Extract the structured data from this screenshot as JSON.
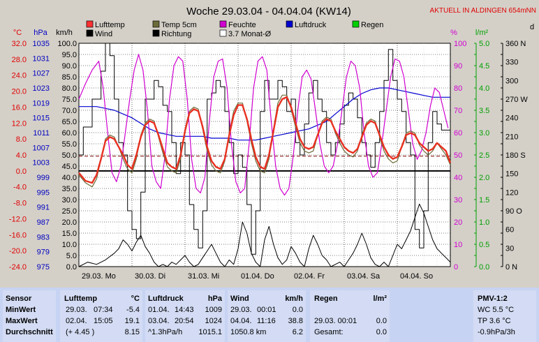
{
  "chart_data": {
    "type": "line",
    "title": "Woche 29.03.04 - 04.04.04 (KW14)",
    "station_note": "AKTUELL IN ALDINGEN 654mNN",
    "legend": [
      {
        "name": "Lufttemp",
        "color": "#ff3030"
      },
      {
        "name": "Wind",
        "color": "#000000"
      },
      {
        "name": "Temp 5cm",
        "color": "#6b6b3a"
      },
      {
        "name": "Richtung",
        "color": "#000000"
      },
      {
        "name": "Feuchte",
        "color": "#d000d0"
      },
      {
        "name": "3.7 Monat-Ø",
        "color": "#ffffff"
      },
      {
        "name": "Luftdruck",
        "color": "#0000d0"
      },
      {
        "name": "Regen",
        "color": "#00d000"
      }
    ],
    "axis_units": {
      "temp": "°C",
      "pressure": "hPa",
      "wind": "km/h",
      "humidity": "%",
      "rain": "l/m²",
      "direction": "d"
    },
    "temp_ticks": [
      "32.0",
      "28.0",
      "24.0",
      "20.0",
      "16.0",
      "12.0",
      "8.0",
      "4.0",
      "0.0",
      "-4.0",
      "-8.0",
      "-12.0",
      "-16.0",
      "-20.0",
      "-24.0"
    ],
    "pressure_ticks": [
      "1035",
      "1031",
      "1027",
      "1023",
      "1019",
      "1015",
      "1011",
      "1007",
      "1003",
      "999",
      "995",
      "991",
      "987",
      "983",
      "979",
      "975"
    ],
    "wind_ticks": [
      "100.0",
      "95.0",
      "90.0",
      "85.0",
      "80.0",
      "75.0",
      "70.0",
      "65.0",
      "60.0",
      "55.0",
      "50.0",
      "45.0",
      "40.0",
      "35.0",
      "30.0",
      "25.0",
      "20.0",
      "15.0",
      "10.0",
      "5.0",
      "0.0"
    ],
    "humidity_ticks": [
      "100",
      "90",
      "80",
      "70",
      "60",
      "50",
      "40",
      "30",
      "20",
      "10",
      "0"
    ],
    "rain_ticks": [
      "5.0",
      "4.5",
      "4.0",
      "3.5",
      "3.0",
      "2.5",
      "2.0",
      "1.5",
      "1.0",
      "0.5",
      "0.0"
    ],
    "direction_ticks": [
      "360 N",
      "330",
      "300",
      "270 W",
      "240",
      "210",
      "180 S",
      "150",
      "120",
      "90 O",
      "60",
      "30",
      "0 N"
    ],
    "day_labels": [
      "29.03. Mo",
      "30.03. Di",
      "31.03. Mi",
      "01.04. Do",
      "02.04. Fr",
      "03.04. Sa",
      "04.04. So"
    ],
    "ylim_temp": [
      -24,
      32
    ],
    "ylim_pressure": [
      975,
      1035
    ],
    "ylim_wind": [
      0,
      100
    ],
    "ylim_humidity": [
      0,
      100
    ],
    "ylim_rain": [
      0,
      5
    ],
    "ylim_direction": [
      0,
      360
    ],
    "xlim_hours": [
      0,
      168
    ],
    "grid": true,
    "temp_zero_line": 0,
    "monthly_mean_temp": 3.7,
    "series": [
      {
        "name": "Lufttemp",
        "color": "#e83020",
        "axis": "temp",
        "x": [
          0,
          3,
          6,
          8,
          10,
          12,
          14,
          16,
          18,
          20,
          22,
          24,
          26,
          28,
          30,
          32,
          34,
          36,
          38,
          40,
          42,
          44,
          46,
          48,
          50,
          52,
          54,
          56,
          58,
          60,
          62,
          64,
          66,
          68,
          70,
          72,
          74,
          76,
          78,
          80,
          82,
          84,
          86,
          88,
          90,
          92,
          94,
          96,
          98,
          100,
          102,
          104,
          106,
          108,
          110,
          112,
          114,
          116,
          118,
          120,
          122,
          124,
          126,
          128,
          130,
          132,
          134,
          136,
          138,
          140,
          142,
          144,
          146,
          148,
          150,
          152,
          154,
          156,
          158,
          160,
          162,
          164,
          166,
          168
        ],
        "y": [
          -0.5,
          -2.5,
          -3,
          -1,
          3,
          7.5,
          8.5,
          8,
          6,
          4,
          1.5,
          0.5,
          4,
          8.5,
          11.5,
          12.5,
          12,
          9,
          5.5,
          2,
          1,
          0.5,
          4,
          10,
          14.5,
          15.5,
          15,
          11,
          6,
          2.5,
          1,
          0.5,
          3,
          9,
          14,
          16.5,
          16.5,
          13,
          8,
          3.5,
          1,
          0.5,
          4,
          10,
          16,
          18,
          18.5,
          16,
          12,
          8,
          6,
          5.5,
          6,
          9,
          12,
          13,
          12.5,
          10,
          8,
          6,
          5,
          4.5,
          5.5,
          8.5,
          11.5,
          12.5,
          12,
          9,
          6,
          4,
          3,
          3.5,
          6,
          9,
          9.5,
          9,
          7,
          6,
          5,
          5.5,
          7,
          6,
          5,
          2
        ]
      },
      {
        "name": "Temp 5cm",
        "color": "#6b6b3a",
        "axis": "temp",
        "x": [
          0,
          3,
          6,
          8,
          10,
          12,
          14,
          16,
          18,
          20,
          22,
          24,
          26,
          28,
          30,
          32,
          34,
          36,
          38,
          40,
          42,
          44,
          46,
          48,
          50,
          52,
          54,
          56,
          58,
          60,
          62,
          64,
          66,
          68,
          70,
          72,
          74,
          76,
          78,
          80,
          82,
          84,
          86,
          88,
          90,
          92,
          94,
          96,
          98,
          100,
          102,
          104,
          106,
          108,
          110,
          112,
          114,
          116,
          118,
          120,
          122,
          124,
          126,
          128,
          130,
          132,
          134,
          136,
          138,
          140,
          142,
          144,
          146,
          148,
          150,
          152,
          154,
          156,
          158,
          160,
          162,
          164,
          166,
          168
        ],
        "y": [
          -1,
          -3,
          -4,
          -2,
          3,
          8,
          9,
          8.5,
          6,
          3,
          0.5,
          -0.5,
          3,
          9,
          12,
          13,
          12.5,
          8.5,
          4.5,
          1,
          0,
          -0.5,
          3,
          10.5,
          15,
          16,
          15.5,
          10.5,
          5,
          1.5,
          0,
          -0.5,
          2.5,
          9.5,
          15,
          17,
          17,
          12.5,
          7,
          2.5,
          0,
          -0.5,
          3,
          10.5,
          17,
          19,
          19,
          15.5,
          11,
          7,
          5,
          4.5,
          5,
          9,
          12.5,
          13.5,
          13,
          9.5,
          7,
          5,
          4,
          3.5,
          5,
          9,
          12,
          13,
          12.5,
          8.5,
          5,
          3,
          2,
          2.5,
          6,
          9.5,
          10,
          9.5,
          6.5,
          5,
          4,
          5,
          7,
          5.5,
          4,
          1.5
        ]
      },
      {
        "name": "Feuchte",
        "color": "#d000d0",
        "axis": "humidity",
        "x": [
          0,
          3,
          6,
          9,
          11,
          13,
          15,
          17,
          19,
          21,
          23,
          25,
          27,
          29,
          31,
          33,
          35,
          37,
          39,
          41,
          43,
          45,
          47,
          49,
          51,
          53,
          55,
          57,
          59,
          61,
          63,
          65,
          67,
          69,
          71,
          73,
          75,
          77,
          79,
          81,
          83,
          85,
          87,
          89,
          91,
          93,
          95,
          97,
          99,
          101,
          103,
          105,
          107,
          109,
          111,
          113,
          115,
          117,
          119,
          121,
          123,
          125,
          127,
          129,
          131,
          133,
          135,
          137,
          139,
          141,
          143,
          145,
          147,
          149,
          151,
          153,
          155,
          157,
          159,
          161,
          163,
          165,
          167
        ],
        "y": [
          75,
          82,
          88,
          92,
          80,
          60,
          42,
          38,
          45,
          60,
          75,
          88,
          95,
          88,
          70,
          45,
          38,
          35,
          50,
          75,
          90,
          94,
          92,
          75,
          48,
          35,
          33,
          40,
          65,
          85,
          92,
          93,
          80,
          55,
          38,
          33,
          35,
          55,
          80,
          92,
          94,
          88,
          65,
          45,
          35,
          32,
          35,
          50,
          70,
          85,
          88,
          84,
          70,
          55,
          45,
          42,
          45,
          55,
          70,
          85,
          92,
          90,
          80,
          60,
          45,
          40,
          42,
          55,
          70,
          85,
          93,
          92,
          85,
          70,
          55,
          48,
          52,
          60,
          72,
          80,
          78,
          70,
          62
        ]
      },
      {
        "name": "Luftdruck",
        "color": "#0000d0",
        "axis": "pressure",
        "x": [
          0,
          4,
          8,
          12,
          16,
          20,
          24,
          28,
          32,
          36,
          40,
          44,
          48,
          52,
          56,
          60,
          64,
          68,
          72,
          76,
          80,
          84,
          88,
          92,
          96,
          100,
          104,
          108,
          112,
          116,
          120,
          124,
          128,
          132,
          136,
          140,
          144,
          148,
          152,
          156,
          160,
          164,
          168
        ],
        "y": [
          1018,
          1018,
          1018,
          1017.5,
          1017,
          1016,
          1015,
          1013.5,
          1012,
          1011,
          1010.5,
          1010,
          1010,
          1010,
          1010,
          1009.5,
          1009.5,
          1009.5,
          1009,
          1009,
          1009,
          1009.5,
          1010,
          1010.5,
          1011,
          1011.5,
          1012,
          1013,
          1014,
          1016,
          1018,
          1020,
          1021.5,
          1022.5,
          1023,
          1023,
          1022.5,
          1022,
          1021.5,
          1021,
          1020.5,
          1020.5,
          1020.5
        ]
      },
      {
        "name": "Wind",
        "color": "#000000",
        "axis": "wind",
        "x": [
          0,
          4,
          8,
          12,
          16,
          18,
          20,
          22,
          24,
          26,
          28,
          30,
          32,
          34,
          36,
          38,
          40,
          42,
          44,
          46,
          48,
          50,
          52,
          54,
          56,
          58,
          60,
          62,
          64,
          66,
          68,
          70,
          72,
          74,
          76,
          78,
          80,
          82,
          84,
          86,
          88,
          90,
          92,
          94,
          96,
          98,
          100,
          102,
          104,
          106,
          108,
          110,
          112,
          114,
          116,
          118,
          120,
          122,
          124,
          126,
          128,
          130,
          132,
          134,
          136,
          138,
          140,
          142,
          144,
          146,
          148,
          150,
          152,
          154,
          156,
          158,
          160,
          162,
          164,
          166,
          168
        ],
        "y": [
          0,
          2,
          1,
          3,
          6,
          8,
          12,
          10,
          7,
          11,
          14,
          9,
          6,
          2,
          0,
          1,
          0,
          2,
          1,
          3,
          5,
          2,
          0,
          1,
          4,
          7,
          10,
          6,
          2,
          0,
          3,
          1,
          8,
          20,
          15,
          6,
          2,
          0,
          12,
          18,
          10,
          4,
          1,
          3,
          9,
          6,
          2,
          0,
          8,
          14,
          10,
          5,
          3,
          0,
          1,
          2,
          0,
          3,
          6,
          10,
          15,
          10,
          4,
          1,
          0,
          2,
          0,
          5,
          10,
          8,
          12,
          16,
          22,
          28,
          24,
          18,
          12,
          8,
          6,
          4,
          2
        ]
      },
      {
        "name": "Richtung",
        "color": "#000000",
        "axis": "direction",
        "x": [
          0,
          2,
          4,
          6,
          8,
          10,
          12,
          14,
          16,
          18,
          20,
          22,
          24,
          26,
          28,
          30,
          32,
          34,
          36,
          38,
          40,
          42,
          44,
          46,
          48,
          50,
          52,
          54,
          56,
          58,
          60,
          62,
          64,
          66,
          68,
          70,
          72,
          74,
          76,
          78,
          80,
          82,
          84,
          86,
          88,
          90,
          92,
          94,
          96,
          98,
          100,
          102,
          104,
          106,
          108,
          110,
          112,
          114,
          116,
          118,
          120,
          122,
          124,
          126,
          128,
          130,
          132,
          134,
          136,
          138,
          140,
          142,
          144,
          146,
          148,
          150,
          152,
          154,
          156,
          158,
          160,
          162,
          164,
          166,
          168
        ],
        "y": [
          180,
          225,
          225,
          270,
          270,
          315,
          360,
          340,
          270,
          200,
          180,
          90,
          60,
          45,
          120,
          270,
          270,
          300,
          290,
          260,
          250,
          200,
          150,
          200,
          180,
          100,
          60,
          30,
          90,
          270,
          280,
          300,
          290,
          250,
          200,
          150,
          180,
          160,
          100,
          20,
          90,
          250,
          300,
          270,
          270,
          300,
          290,
          250,
          270,
          200,
          180,
          230,
          280,
          300,
          270,
          250,
          200,
          180,
          200,
          230,
          260,
          280,
          270,
          240,
          200,
          180,
          160,
          200,
          250,
          300,
          350,
          300,
          270,
          250,
          200,
          180,
          60,
          30,
          90,
          200,
          250,
          230,
          220,
          220,
          180
        ]
      }
    ]
  },
  "stats": {
    "headers": {
      "sensor": "Sensor",
      "lufttemp": "Lufttemp",
      "lufttemp_unit": "°C",
      "luftdruck": "Luftdruck",
      "luftdruck_unit": "hPa",
      "wind": "Wind",
      "wind_unit": "km/h",
      "regen": "Regen",
      "regen_unit": "l/m²",
      "pmv": "PMV-1:2"
    },
    "row_labels": [
      "MinWert",
      "MaxWert",
      "Durchschnitt"
    ],
    "lufttemp": [
      [
        "29.03.",
        "07:34",
        "-5.4"
      ],
      [
        "02.04.",
        "15:05",
        "19.1"
      ],
      [
        "(+ 4.45 )",
        "",
        "8.15"
      ]
    ],
    "luftdruck": [
      [
        "01.04.",
        "14:43",
        "1009"
      ],
      [
        "03.04.",
        "20:54",
        "1024"
      ],
      [
        "^1.3hPa/h",
        "",
        "1015.1"
      ]
    ],
    "wind": [
      [
        "29.03.",
        "00:01",
        "0.0"
      ],
      [
        "04.04.",
        "11:16",
        "38.8"
      ],
      [
        "1050.8 km",
        "",
        "6.2"
      ]
    ],
    "regen": [
      [
        "",
        ""
      ],
      [
        "29.03.  00:01",
        "0.0"
      ],
      [
        "Gesamt:",
        "0.0"
      ]
    ],
    "pmv": [
      "WC 5.5 °C",
      "TP 3.6 °C",
      "-0.9hPa/3h"
    ]
  }
}
